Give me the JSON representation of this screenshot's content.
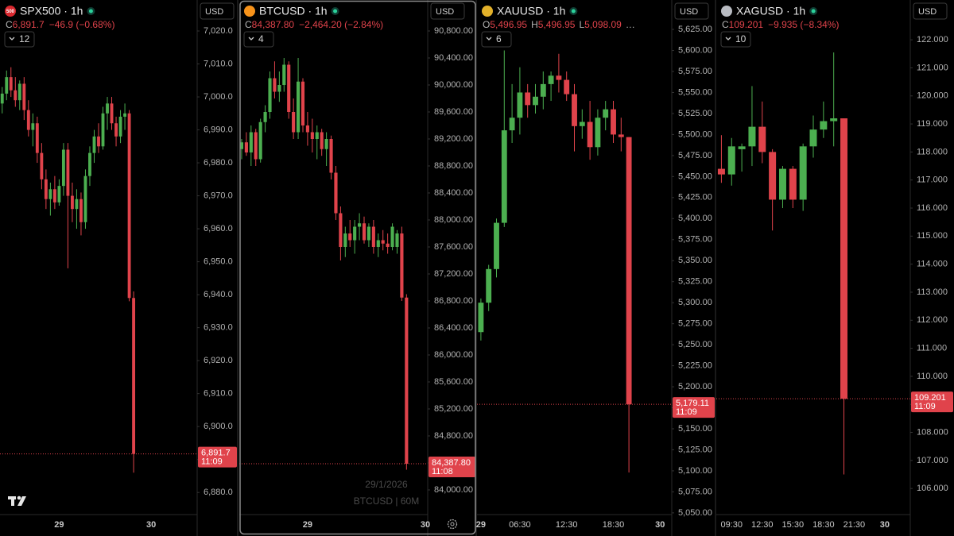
{
  "chart_data": [
    {
      "type": "candlestick",
      "title": "SPX500 · 1h",
      "icon_text": "500",
      "icon_color": "#d9282f",
      "currency": "USD",
      "legend": [
        {
          "key": "C",
          "value": "6,891.7"
        }
      ],
      "change": "−46.9 (−0.68%)",
      "indicators": "12",
      "up_color": "#4caf50",
      "down_color": "#e0434b",
      "categories": [
        null,
        null,
        null,
        null,
        null,
        null,
        null,
        null,
        null,
        null,
        null,
        null,
        null,
        "29",
        null,
        null,
        null,
        null,
        null,
        null,
        null,
        null,
        null,
        null,
        null,
        null,
        null,
        null,
        null,
        null,
        null,
        null,
        null,
        null,
        "30",
        null,
        null,
        null,
        null,
        null,
        null,
        null,
        null,
        null,
        null
      ],
      "open": [
        6998,
        7001,
        7006,
        7002,
        6999,
        7004,
        6996,
        6990,
        6992,
        6983,
        6975,
        6969,
        6972,
        6968,
        6973,
        6984,
        6970,
        6966,
        6969,
        6962,
        6976,
        6983,
        6988,
        6985,
        6995,
        6998,
        6992,
        6988,
        6994,
        6995,
        6939,
        null,
        null,
        null,
        null,
        null,
        null,
        null,
        null,
        null,
        null,
        null,
        null,
        null,
        null
      ],
      "high": [
        7003,
        7008,
        7009,
        7006,
        7005,
        7006,
        6999,
        6995,
        6994,
        6986,
        6978,
        6974,
        6976,
        6975,
        6986,
        6986,
        6974,
        6972,
        6971,
        6978,
        6985,
        6990,
        6992,
        6997,
        7000,
        7000,
        6994,
        6996,
        6998,
        6996,
        6941,
        null,
        null,
        null,
        null,
        null,
        null,
        null,
        null,
        null,
        null,
        null,
        null,
        null,
        null
      ],
      "low": [
        6995,
        6999,
        7000,
        6997,
        6996,
        6993,
        6988,
        6985,
        6980,
        6972,
        6966,
        6964,
        6966,
        6967,
        6970,
        6948,
        6962,
        6960,
        6958,
        6960,
        6973,
        6980,
        6983,
        6984,
        6990,
        6990,
        6985,
        6986,
        6990,
        6938,
        6886,
        null,
        null,
        null,
        null,
        null,
        null,
        null,
        null,
        null,
        null,
        null,
        null,
        null,
        null
      ],
      "close": [
        7001,
        7006,
        7002,
        6999,
        7004,
        6996,
        6990,
        6992,
        6983,
        6975,
        6969,
        6972,
        6968,
        6973,
        6984,
        6970,
        6966,
        6969,
        6962,
        6976,
        6983,
        6988,
        6985,
        6995,
        6998,
        6992,
        6988,
        6994,
        6995,
        6939,
        6891.7,
        null,
        null,
        null,
        null,
        null,
        null,
        null,
        null,
        null,
        null,
        null,
        null,
        null,
        null
      ],
      "ylim": [
        6873.3,
        7029.4
      ],
      "yticks": [
        {
          "value": 7020,
          "label": "7,020.0"
        },
        {
          "value": 7010,
          "label": "7,010.0"
        },
        {
          "value": 7000,
          "label": "7,000.0"
        },
        {
          "value": 6990,
          "label": "6,990.0"
        },
        {
          "value": 6980,
          "label": "6,980.0"
        },
        {
          "value": 6970,
          "label": "6,970.0"
        },
        {
          "value": 6960,
          "label": "6,960.0"
        },
        {
          "value": 6950,
          "label": "6,950.0"
        },
        {
          "value": 6940,
          "label": "6,940.0"
        },
        {
          "value": 6930,
          "label": "6,930.0"
        },
        {
          "value": 6920,
          "label": "6,920.0"
        },
        {
          "value": 6910,
          "label": "6,910.0"
        },
        {
          "value": 6900,
          "label": "6,900.0"
        },
        {
          "value": 6890,
          "label": "6,890.0"
        },
        {
          "value": 6880,
          "label": "6,880.0"
        }
      ],
      "last_price": {
        "value": 6891.7,
        "label": "6,891.7"
      },
      "countdown": "11:09"
    },
    {
      "type": "candlestick",
      "title": "BTCUSD · 1h",
      "icon_color": "#f7931a",
      "currency": "USD",
      "active": true,
      "legend": [
        {
          "key": "C",
          "value": "84,387.80"
        }
      ],
      "change": "−2,464.20 (−2.84%)",
      "indicators": "4",
      "up_color": "#4caf50",
      "down_color": "#e0434b",
      "categories": [
        null,
        null,
        null,
        null,
        null,
        null,
        null,
        null,
        null,
        null,
        null,
        null,
        null,
        null,
        "29",
        null,
        null,
        null,
        null,
        null,
        null,
        null,
        null,
        null,
        null,
        null,
        null,
        null,
        null,
        null,
        null,
        null,
        null,
        null,
        null,
        null,
        null,
        null,
        null,
        "30"
      ],
      "open": [
        89050,
        89150,
        89000,
        89300,
        88900,
        89450,
        89600,
        90100,
        89900,
        90000,
        90300,
        89600,
        89300,
        90050,
        89400,
        89300,
        89200,
        89300,
        89050,
        89200,
        88700,
        88100,
        87600,
        87800,
        87700,
        87900,
        87950,
        87700,
        87900,
        87600,
        87700,
        87650,
        87600,
        87600,
        87800,
        86850,
        null,
        null,
        null,
        null
      ],
      "high": [
        89200,
        89300,
        89400,
        89350,
        89500,
        89700,
        90200,
        90350,
        90200,
        90400,
        90350,
        89800,
        90400,
        90100,
        89600,
        89500,
        89400,
        89350,
        89300,
        89250,
        88800,
        88200,
        87900,
        88000,
        88000,
        88100,
        88050,
        87950,
        88000,
        87800,
        87850,
        87800,
        87950,
        87850,
        87900,
        86900,
        null,
        null,
        null,
        null
      ],
      "low": [
        88900,
        88950,
        88800,
        88800,
        88850,
        89300,
        89500,
        89800,
        89750,
        89900,
        89500,
        89200,
        89200,
        89300,
        89100,
        89000,
        88900,
        88950,
        88800,
        88600,
        88000,
        87400,
        87450,
        87600,
        87500,
        87700,
        87650,
        87600,
        87500,
        87450,
        87550,
        87500,
        87550,
        87500,
        86800,
        84300,
        null,
        null,
        null,
        null
      ],
      "close": [
        89150,
        89000,
        89300,
        88900,
        89450,
        89600,
        90100,
        89900,
        90000,
        90300,
        89600,
        89300,
        90050,
        89400,
        89300,
        89200,
        89300,
        89050,
        89200,
        88700,
        88100,
        87600,
        87800,
        87700,
        87900,
        87950,
        87700,
        87900,
        87600,
        87700,
        87650,
        87600,
        87900,
        87800,
        86850,
        84387.8,
        null,
        null,
        null,
        null
      ],
      "ylim": [
        83635,
        91259
      ],
      "yticks": [
        {
          "value": 90800,
          "label": "90,800.00"
        },
        {
          "value": 90400,
          "label": "90,400.00"
        },
        {
          "value": 90000,
          "label": "90,000.00"
        },
        {
          "value": 89600,
          "label": "89,600.00"
        },
        {
          "value": 89200,
          "label": "89,200.00"
        },
        {
          "value": 88800,
          "label": "88,800.00"
        },
        {
          "value": 88400,
          "label": "88,400.00"
        },
        {
          "value": 88000,
          "label": "88,000.00"
        },
        {
          "value": 87600,
          "label": "87,600.00"
        },
        {
          "value": 87200,
          "label": "87,200.00"
        },
        {
          "value": 86800,
          "label": "86,800.00"
        },
        {
          "value": 86400,
          "label": "86,400.00"
        },
        {
          "value": 86000,
          "label": "86,000.00"
        },
        {
          "value": 85600,
          "label": "85,600.00"
        },
        {
          "value": 85200,
          "label": "85,200.00"
        },
        {
          "value": 84800,
          "label": "84,800.00"
        },
        {
          "value": 84400,
          "label": "84,400.00"
        },
        {
          "value": 84000,
          "label": "84,000.00"
        }
      ],
      "last_price": {
        "value": 84387.8,
        "label": "84,387.80"
      },
      "countdown": "11:08",
      "watermark": [
        "29/1/2026",
        "BTCUSD | 60M"
      ]
    },
    {
      "type": "candlestick",
      "title": "XAUUSD · 1h",
      "icon_color": "#e3b12a",
      "currency": "USD",
      "legend": [
        {
          "key": "O",
          "value": "5,496.95"
        },
        {
          "key": "H",
          "value": "5,496.95"
        },
        {
          "key": "L",
          "value": "5,098.09"
        }
      ],
      "more": "…",
      "indicators": "6",
      "up_color": "#4caf50",
      "down_color": "#e0434b",
      "categories": [
        "29",
        null,
        null,
        null,
        null,
        "06:30",
        null,
        null,
        null,
        null,
        null,
        "12:30",
        null,
        null,
        null,
        null,
        null,
        "18:30",
        null,
        null,
        null,
        null,
        null,
        "30",
        null
      ],
      "open": [
        5265,
        5300,
        5340,
        5395,
        5505,
        5520,
        5550,
        5535,
        5545,
        5560,
        5570,
        5565,
        5548,
        5510,
        5515,
        5485,
        5520,
        5530,
        5500,
        5496.95,
        null,
        null,
        null,
        null,
        null
      ],
      "high": [
        5305,
        5345,
        5400,
        5600,
        5560,
        5580,
        5560,
        5560,
        5575,
        5575,
        5596,
        5575,
        5560,
        5530,
        5540,
        5530,
        5540,
        5540,
        5520,
        5496.95,
        null,
        null,
        null,
        null,
        null
      ],
      "low": [
        5255,
        5290,
        5330,
        5390,
        5490,
        5500,
        5520,
        5525,
        5530,
        5540,
        5550,
        5540,
        5480,
        5495,
        5470,
        5475,
        5505,
        5490,
        5480,
        5098.09,
        null,
        null,
        null,
        null,
        null
      ],
      "close": [
        5300,
        5340,
        5395,
        5505,
        5520,
        5550,
        5535,
        5545,
        5560,
        5570,
        5565,
        5548,
        5510,
        5515,
        5485,
        5520,
        5530,
        5500,
        5496.95,
        5179.11,
        null,
        null,
        null,
        null,
        null
      ],
      "ylim": [
        5048,
        5660
      ],
      "yticks": [
        {
          "value": 5625,
          "label": "5,625.00"
        },
        {
          "value": 5600,
          "label": "5,600.00"
        },
        {
          "value": 5575,
          "label": "5,575.00"
        },
        {
          "value": 5550,
          "label": "5,550.00"
        },
        {
          "value": 5525,
          "label": "5,525.00"
        },
        {
          "value": 5500,
          "label": "5,500.00"
        },
        {
          "value": 5475,
          "label": "5,475.00"
        },
        {
          "value": 5450,
          "label": "5,450.00"
        },
        {
          "value": 5425,
          "label": "5,425.00"
        },
        {
          "value": 5400,
          "label": "5,400.00"
        },
        {
          "value": 5375,
          "label": "5,375.00"
        },
        {
          "value": 5350,
          "label": "5,350.00"
        },
        {
          "value": 5325,
          "label": "5,325.00"
        },
        {
          "value": 5300,
          "label": "5,300.00"
        },
        {
          "value": 5275,
          "label": "5,275.00"
        },
        {
          "value": 5250,
          "label": "5,250.00"
        },
        {
          "value": 5225,
          "label": "5,225.00"
        },
        {
          "value": 5200,
          "label": "5,200.00"
        },
        {
          "value": 5175,
          "label": "5,175.00"
        },
        {
          "value": 5150,
          "label": "5,150.00"
        },
        {
          "value": 5125,
          "label": "5,125.00"
        },
        {
          "value": 5100,
          "label": "5,100.00"
        },
        {
          "value": 5075,
          "label": "5,075.00"
        },
        {
          "value": 5050,
          "label": "5,050.00"
        }
      ],
      "last_price": {
        "value": 5179.11,
        "label": "5,179.11"
      },
      "countdown": "11:09"
    },
    {
      "type": "candlestick",
      "title": "XAGUSD · 1h",
      "icon_color": "#b9bcc2",
      "currency": "USD",
      "legend": [
        {
          "key": "C",
          "value": "109.201"
        }
      ],
      "change": "−9.935 (−8.34%)",
      "indicators": "10",
      "up_color": "#4caf50",
      "down_color": "#e0434b",
      "categories": [
        null,
        "09:30",
        null,
        null,
        "12:30",
        null,
        null,
        "15:30",
        null,
        null,
        "18:30",
        null,
        null,
        "21:30",
        null,
        null,
        "30",
        null,
        null
      ],
      "open": [
        117.4,
        117.2,
        118.1,
        118.2,
        118.9,
        118.0,
        116.3,
        117.4,
        116.3,
        118.2,
        118.8,
        119.1,
        119.2,
        null,
        null,
        null,
        null,
        null,
        null
      ],
      "high": [
        118.6,
        118.5,
        118.3,
        120.35,
        119.8,
        118.1,
        117.5,
        117.5,
        118.3,
        119.3,
        119.8,
        121.55,
        119.2,
        null,
        null,
        null,
        null,
        null,
        null
      ],
      "low": [
        116.9,
        116.8,
        117.3,
        117.5,
        117.6,
        115.2,
        116.0,
        116.0,
        115.9,
        117.8,
        118.5,
        118.2,
        106.5,
        null,
        null,
        null,
        null,
        null,
        null
      ],
      "close": [
        117.2,
        118.2,
        118.2,
        118.9,
        118.0,
        116.3,
        117.4,
        116.3,
        118.2,
        118.8,
        119.1,
        119.2,
        109.201,
        null,
        null,
        null,
        null,
        null,
        null
      ],
      "ylim": [
        105.07,
        123.42
      ],
      "yticks": [
        {
          "value": 122,
          "label": "122.000"
        },
        {
          "value": 121,
          "label": "121.000"
        },
        {
          "value": 120,
          "label": "120.000"
        },
        {
          "value": 119,
          "label": "119.000"
        },
        {
          "value": 118,
          "label": "118.000"
        },
        {
          "value": 117,
          "label": "117.000"
        },
        {
          "value": 116,
          "label": "116.000"
        },
        {
          "value": 115,
          "label": "115.000"
        },
        {
          "value": 114,
          "label": "114.000"
        },
        {
          "value": 113,
          "label": "113.000"
        },
        {
          "value": 112,
          "label": "112.000"
        },
        {
          "value": 111,
          "label": "111.000"
        },
        {
          "value": 110,
          "label": "110.000"
        },
        {
          "value": 109,
          "label": "109.000"
        },
        {
          "value": 108,
          "label": "108.000"
        },
        {
          "value": 107,
          "label": "107.000"
        },
        {
          "value": 106,
          "label": "106.000"
        }
      ],
      "last_price": {
        "value": 109.201,
        "label": "109.201"
      },
      "countdown": "11:09"
    }
  ]
}
